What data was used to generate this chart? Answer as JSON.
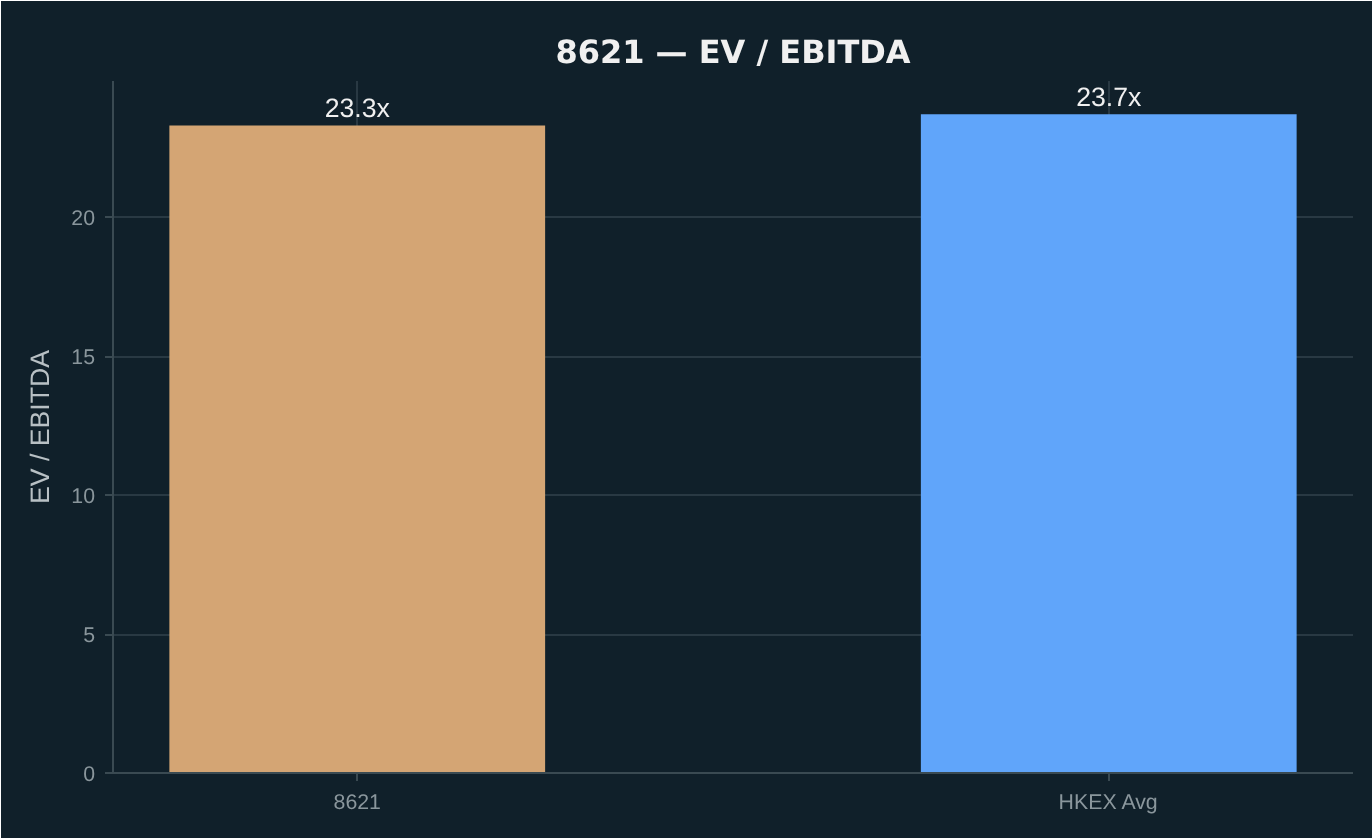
{
  "chart_data": {
    "type": "bar",
    "title": "8621 — EV / EBITDA",
    "ylabel": "EV / EBITDA",
    "categories": [
      "8621",
      "HKEX Avg"
    ],
    "values": [
      23.3,
      23.7
    ],
    "colors": [
      "#d4a574",
      "#60a5fa"
    ],
    "value_labels": [
      "23.3x",
      "23.7x"
    ],
    "ylim": [
      0,
      24.9
    ],
    "yticks": [
      0,
      5,
      10,
      15,
      20
    ],
    "grid": true
  }
}
